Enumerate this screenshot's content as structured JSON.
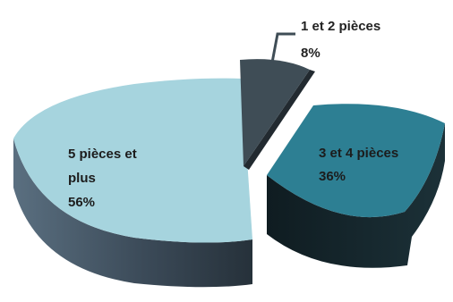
{
  "chart_data": {
    "type": "pie",
    "style": "3d-exploded",
    "title": "",
    "slices": [
      {
        "label_lines": [
          "1 et 2 pièces"
        ],
        "value_text": "8%",
        "value": 8,
        "color": "#3f4d56",
        "side_color": "#1f272c"
      },
      {
        "label_lines": [
          "3 et 4 pièces"
        ],
        "value_text": "36%",
        "value": 36,
        "color": "#2d7f93",
        "side_color": "#15272d"
      },
      {
        "label_lines": [
          "5 pièces et",
          "plus"
        ],
        "value_text": "56%",
        "value": 56,
        "color": "#a6d4de",
        "side_color": "#3b4a58"
      }
    ],
    "legend": "none"
  }
}
